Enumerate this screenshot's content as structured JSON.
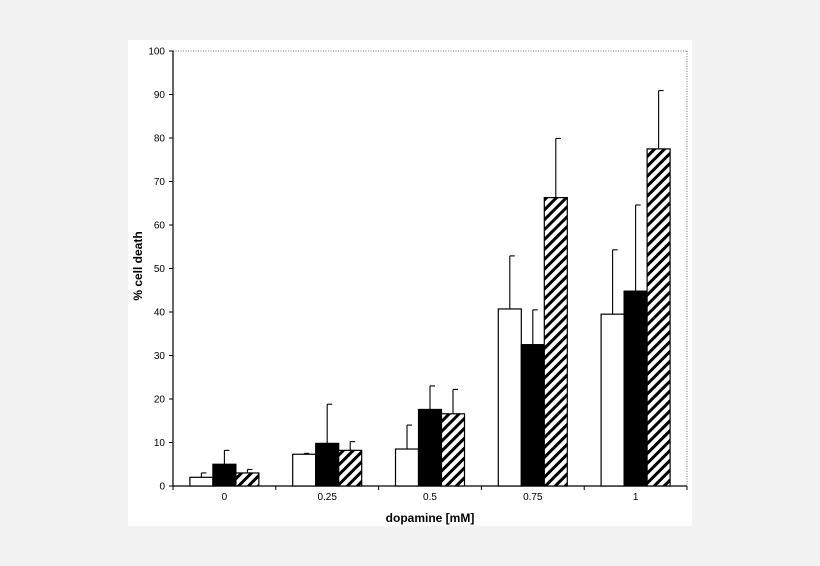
{
  "chart_data": {
    "type": "bar",
    "title": "",
    "xlabel": "dopamine [mM]",
    "ylabel": "% cell death",
    "ylim": [
      0,
      100
    ],
    "yticks": [
      0,
      10,
      20,
      30,
      40,
      50,
      60,
      70,
      80,
      90,
      100
    ],
    "categories": [
      "0",
      "0.25",
      "0.5",
      "0.75",
      "1"
    ],
    "grid": false,
    "legend": "none",
    "series": [
      {
        "fill": "#ffffff",
        "pattern": "solid-white",
        "values": [
          2,
          7.3,
          8.5,
          40.7,
          39.5
        ],
        "errors": [
          1,
          0.2,
          5.5,
          12.2,
          14.8
        ]
      },
      {
        "fill": "#000000",
        "pattern": "solid-black",
        "values": [
          5,
          9.8,
          17.6,
          32.5,
          44.8
        ],
        "errors": [
          3.2,
          9,
          5.4,
          8,
          19.8
        ]
      },
      {
        "fill": "#000000",
        "pattern": "diagonal-hatch",
        "values": [
          3,
          8.2,
          16.6,
          66.3,
          77.5
        ],
        "errors": [
          0.8,
          2,
          5.6,
          13.6,
          13.4
        ]
      }
    ]
  }
}
